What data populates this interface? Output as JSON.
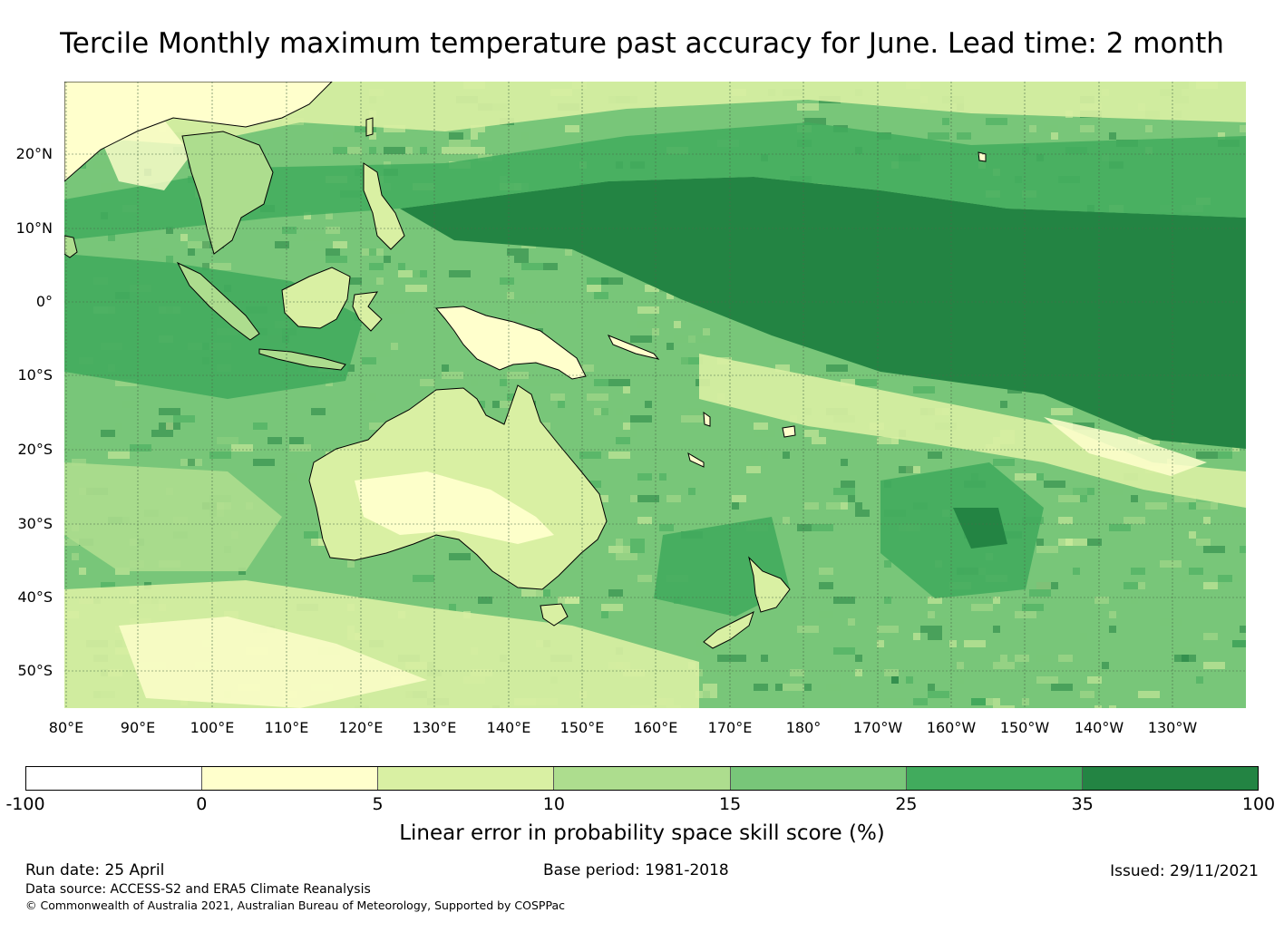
{
  "title": "Tercile Monthly maximum temperature past accuracy for June. Lead time: 2 month",
  "map": {
    "lat_labels": [
      "20°N",
      "10°N",
      "0°",
      "10°S",
      "20°S",
      "30°S",
      "40°S",
      "50°S"
    ],
    "lon_labels": [
      "80°E",
      "90°E",
      "100°E",
      "110°E",
      "120°E",
      "130°E",
      "140°E",
      "150°E",
      "160°E",
      "170°E",
      "180°",
      "170°W",
      "160°W",
      "150°W",
      "140°W",
      "130°W"
    ]
  },
  "colorbar": {
    "ticks": [
      "-100",
      "0",
      "5",
      "10",
      "15",
      "25",
      "35",
      "100"
    ],
    "colors": [
      "#ffffff",
      "#ffffcc",
      "#d9f0a3",
      "#addd8e",
      "#78c679",
      "#41ab5d",
      "#238443"
    ],
    "label": "Linear error in probability space skill score (%)"
  },
  "footer": {
    "run_date": "Run date: 25 April",
    "base_period": "Base period: 1981-2018",
    "issued": "Issued: 29/11/2021",
    "data_source": "Data source: ACCESS-S2 and ERA5 Climate Reanalysis",
    "copyright": "© Commonwealth of Australia 2021, Australian Bureau of Meteorology, Supported by COSPPac"
  }
}
